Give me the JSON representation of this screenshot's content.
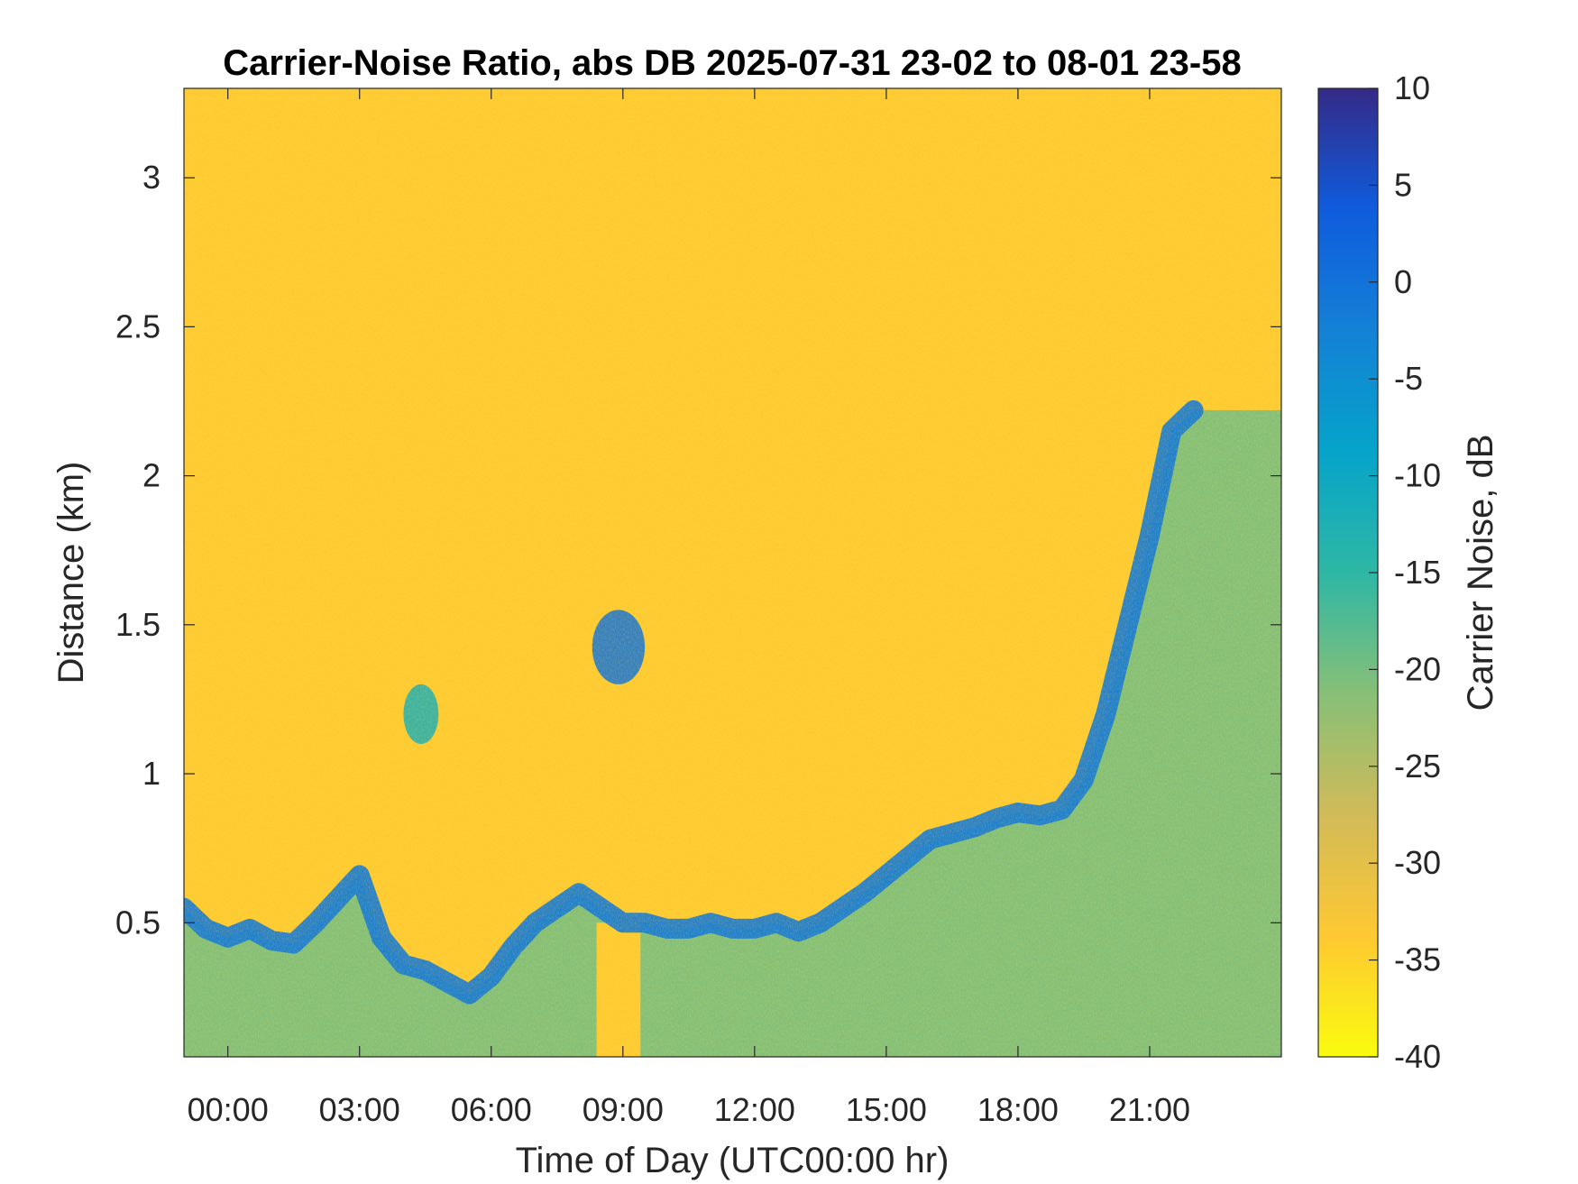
{
  "chart_data": {
    "type": "heatmap",
    "title": "Carrier-Noise Ratio, abs DB 2025-07-31 23-02 to 08-01 23-58",
    "xlabel": "Time of Day (UTC00:00 hr)",
    "ylabel": "Distance (km)",
    "colorbar_label": "Carrier Noise, dB",
    "xlim": [
      -1.0,
      24.0
    ],
    "ylim": [
      0.05,
      3.3
    ],
    "clim": [
      -40,
      10
    ],
    "x_ticks": [
      0,
      3,
      6,
      9,
      12,
      15,
      18,
      21
    ],
    "x_tick_labels": [
      "00:00",
      "03:00",
      "06:00",
      "09:00",
      "12:00",
      "15:00",
      "18:00",
      "21:00"
    ],
    "y_ticks": [
      0.5,
      1,
      1.5,
      2,
      2.5,
      3
    ],
    "y_tick_labels": [
      "0.5",
      "1",
      "1.5",
      "2",
      "2.5",
      "3"
    ],
    "colorbar_ticks": [
      10,
      5,
      0,
      -5,
      -10,
      -15,
      -20,
      -25,
      -30,
      -35,
      -40
    ],
    "colorbar_tick_labels": [
      "10",
      "5",
      "0",
      "-5",
      "-10",
      "-15",
      "-20",
      "-25",
      "-30",
      "-35",
      "-40"
    ],
    "colormap": "parula",
    "colormap_stops": [
      "#352a87",
      "#0f5cdd",
      "#1481d6",
      "#06a4ca",
      "#2eb7a4",
      "#87bf77",
      "#d1bb59",
      "#fec832",
      "#f9fb0e"
    ],
    "background_level_db": -34,
    "near_surface_level_db": -21,
    "boundary_layer_top": {
      "time_hr": [
        -1.0,
        -0.5,
        0.0,
        0.5,
        1.0,
        1.5,
        2.0,
        2.5,
        3.0,
        3.5,
        4.0,
        4.5,
        5.0,
        5.5,
        6.0,
        6.5,
        7.0,
        7.5,
        8.0,
        8.5,
        9.0,
        9.5,
        10.0,
        10.5,
        11.0,
        11.5,
        12.0,
        12.5,
        13.0,
        13.5,
        14.0,
        14.5,
        15.0,
        15.5,
        16.0,
        16.5,
        17.0,
        17.5,
        18.0,
        18.5,
        19.0,
        19.5,
        20.0,
        20.5,
        21.0,
        21.5,
        22.0
      ],
      "distance_km": [
        0.55,
        0.48,
        0.45,
        0.48,
        0.44,
        0.43,
        0.5,
        0.58,
        0.66,
        0.45,
        0.36,
        0.34,
        0.3,
        0.26,
        0.32,
        0.42,
        0.5,
        0.55,
        0.6,
        0.55,
        0.5,
        0.5,
        0.48,
        0.48,
        0.5,
        0.48,
        0.48,
        0.5,
        0.47,
        0.5,
        0.55,
        0.6,
        0.66,
        0.72,
        0.78,
        0.8,
        0.82,
        0.85,
        0.87,
        0.86,
        0.88,
        0.98,
        1.2,
        1.5,
        1.8,
        2.15,
        2.22
      ],
      "level_db": -1
    },
    "features": [
      {
        "type": "layer",
        "time_hr": [
          8.3,
          9.5
        ],
        "distance_km": [
          1.3,
          1.55
        ],
        "level_db": 0
      },
      {
        "type": "layer",
        "time_hr": [
          4.0,
          4.8
        ],
        "distance_km": [
          1.1,
          1.3
        ],
        "level_db": -12
      }
    ],
    "data_dropout": {
      "time_hr": [
        8.4,
        9.4
      ],
      "distance_km": [
        0.05,
        0.5
      ]
    }
  }
}
